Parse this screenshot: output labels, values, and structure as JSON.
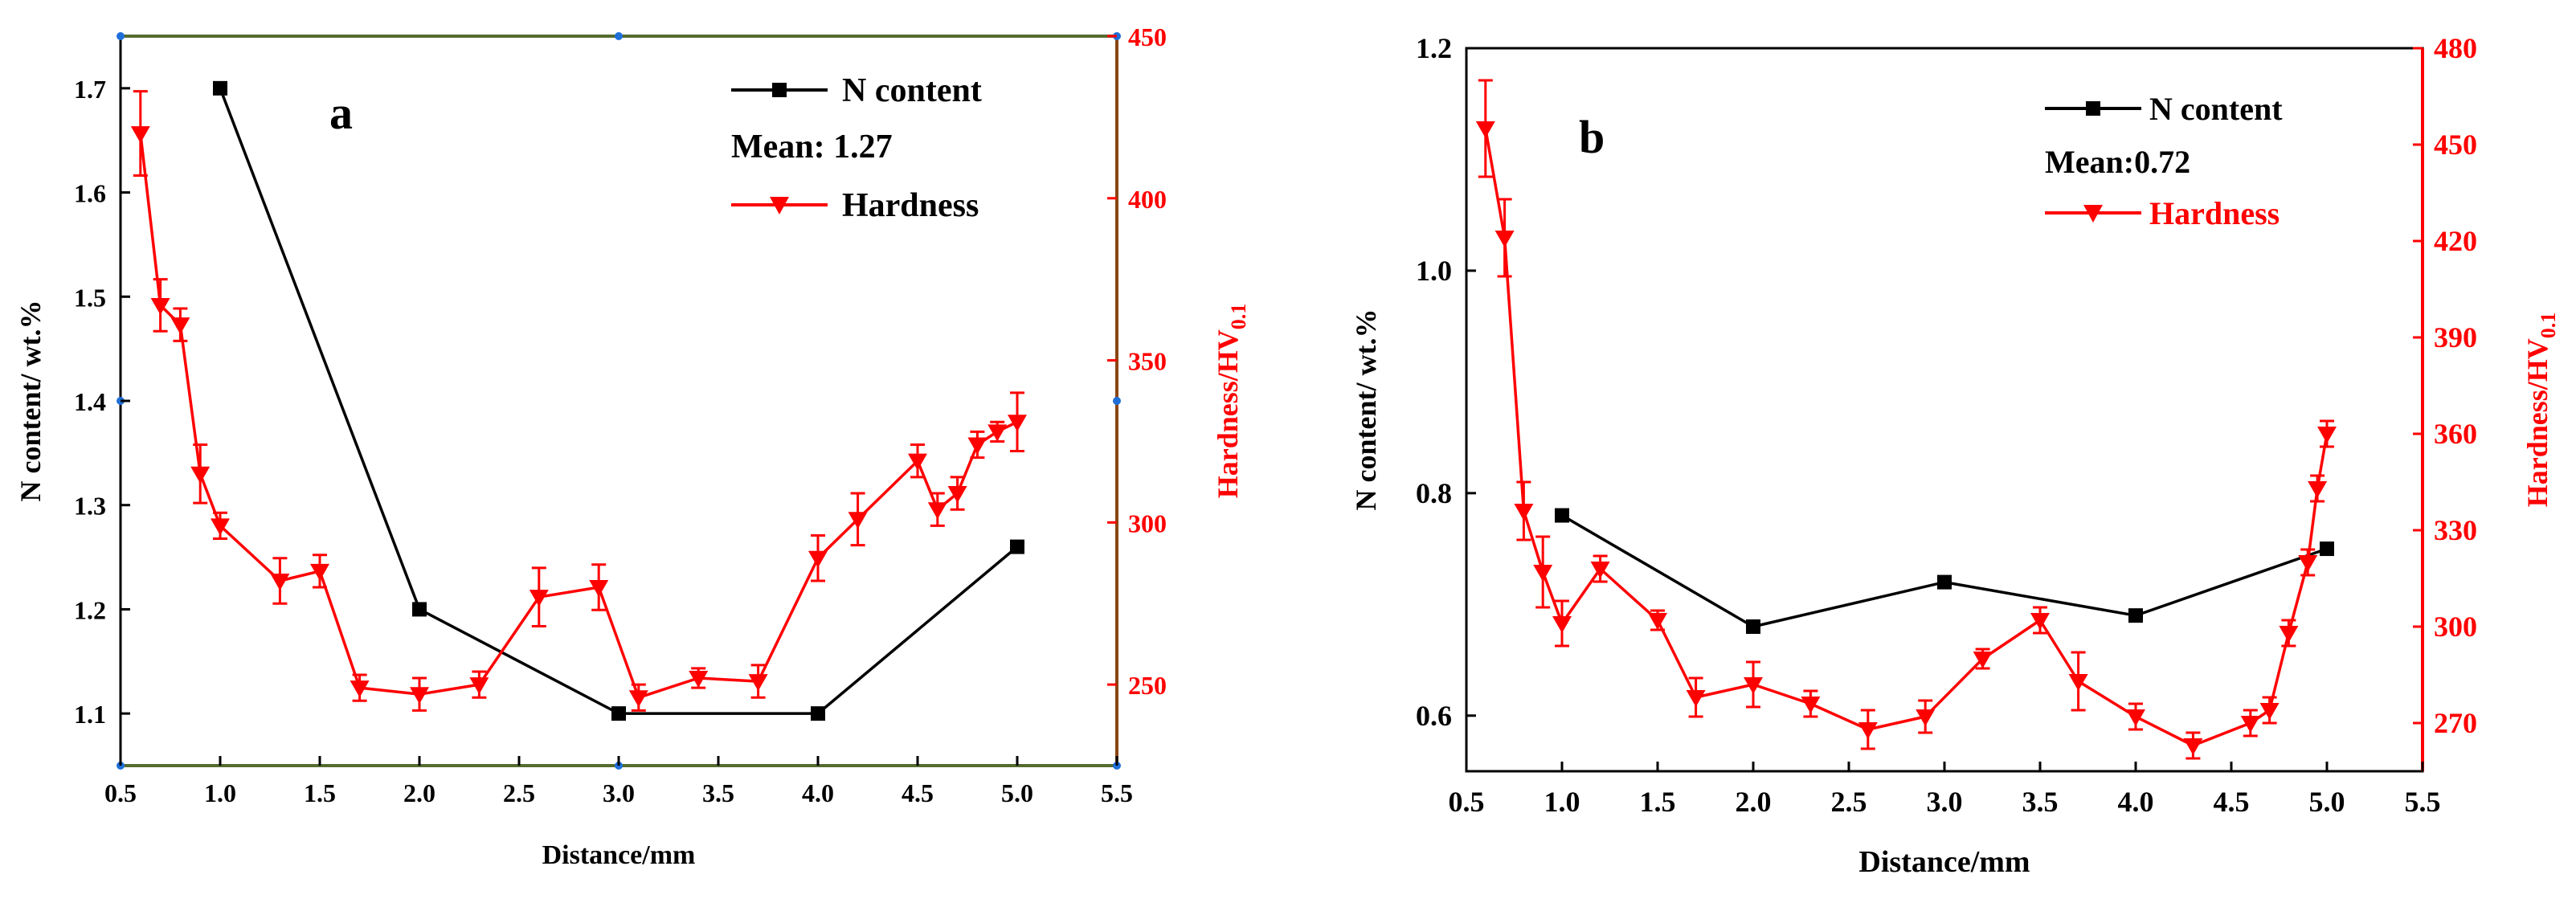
{
  "chart_data": [
    {
      "type": "line",
      "panel_label": "a",
      "xlabel": "Distance/mm",
      "ylabel_left": "N content/ wt.%",
      "ylabel_right_main": "Hardness/HV",
      "ylabel_right_sub": "0.1",
      "x_ticks": [
        "0.5",
        "1.0",
        "1.5",
        "2.0",
        "2.5",
        "3.0",
        "3.5",
        "4.0",
        "4.5",
        "5.0",
        "5.5"
      ],
      "xlim": [
        0.5,
        5.5
      ],
      "ylim_left": [
        1.05,
        1.75
      ],
      "ylim_right": [
        225,
        450
      ],
      "y_left_ticks": [
        "1.1",
        "1.2",
        "1.3",
        "1.4",
        "1.5",
        "1.6",
        "1.7"
      ],
      "y_right_ticks": [
        "250",
        "300",
        "350",
        "400",
        "450"
      ],
      "legend": {
        "n_label": "N content",
        "mean_label": "Mean: 1.27",
        "hardness_label": "Hardness"
      },
      "series": [
        {
          "name": "N content",
          "axis": "left",
          "color": "#000000",
          "marker": "square",
          "x": [
            1.0,
            2.0,
            3.0,
            4.0,
            5.0
          ],
          "y": [
            1.7,
            1.2,
            1.1,
            1.1,
            1.26
          ]
        },
        {
          "name": "Hardness",
          "axis": "right",
          "color": "#ff0000",
          "marker": "triangle-down",
          "x": [
            0.6,
            0.7,
            0.8,
            0.9,
            1.0,
            1.3,
            1.5,
            1.7,
            2.0,
            2.3,
            2.6,
            2.9,
            3.1,
            3.4,
            3.7,
            4.0,
            4.2,
            4.5,
            4.6,
            4.7,
            4.8,
            4.9,
            5.0
          ],
          "y": [
            420,
            367,
            361,
            315,
            299,
            282,
            285,
            249,
            247,
            250,
            277,
            280,
            246,
            252,
            251,
            289,
            301,
            319,
            304,
            309,
            324,
            328,
            331
          ],
          "err": [
            13,
            8,
            5,
            9,
            4,
            7,
            5,
            4,
            5,
            4,
            9,
            7,
            4,
            3,
            5,
            7,
            8,
            5,
            5,
            5,
            4,
            3,
            9
          ]
        }
      ]
    },
    {
      "type": "line",
      "panel_label": "b",
      "xlabel": "Distance/mm",
      "ylabel_left": "N content/ wt.%",
      "ylabel_right_main": "Hardness/HV",
      "ylabel_right_sub": "0.1",
      "x_ticks": [
        "0.5",
        "1.0",
        "1.5",
        "2.0",
        "2.5",
        "3.0",
        "3.5",
        "4.0",
        "4.5",
        "5.0",
        "5.5"
      ],
      "xlim": [
        0.5,
        5.5
      ],
      "ylim_left": [
        0.55,
        1.2
      ],
      "ylim_right": [
        255,
        480
      ],
      "y_left_ticks": [
        "0.6",
        "0.8",
        "1.0",
        "1.2"
      ],
      "y_right_ticks": [
        "270",
        "300",
        "330",
        "360",
        "390",
        "420",
        "450",
        "480"
      ],
      "legend": {
        "n_label": "N content",
        "mean_label": "Mean:0.72",
        "hardness_label": "Hardness"
      },
      "series": [
        {
          "name": "N content",
          "axis": "left",
          "color": "#000000",
          "marker": "square",
          "x": [
            1.0,
            2.0,
            3.0,
            4.0,
            5.0
          ],
          "y": [
            0.78,
            0.68,
            0.72,
            0.69,
            0.75
          ]
        },
        {
          "name": "Hardness",
          "axis": "right",
          "color": "#ff0000",
          "marker": "triangle-down",
          "x": [
            0.6,
            0.7,
            0.8,
            0.9,
            1.0,
            1.2,
            1.5,
            1.7,
            2.0,
            2.3,
            2.6,
            2.9,
            3.2,
            3.5,
            3.7,
            4.0,
            4.3,
            4.6,
            4.7,
            4.8,
            4.9,
            4.95,
            5.0
          ],
          "y": [
            455,
            421,
            336,
            317,
            301,
            318,
            302,
            278,
            282,
            276,
            268,
            272,
            290,
            302,
            283,
            272,
            263,
            270,
            274,
            298,
            320,
            343,
            360
          ],
          "err": [
            15,
            12,
            9,
            11,
            7,
            4,
            3,
            6,
            7,
            4,
            6,
            5,
            3,
            4,
            9,
            4,
            4,
            4,
            4,
            4,
            4,
            4,
            4
          ]
        }
      ]
    }
  ]
}
